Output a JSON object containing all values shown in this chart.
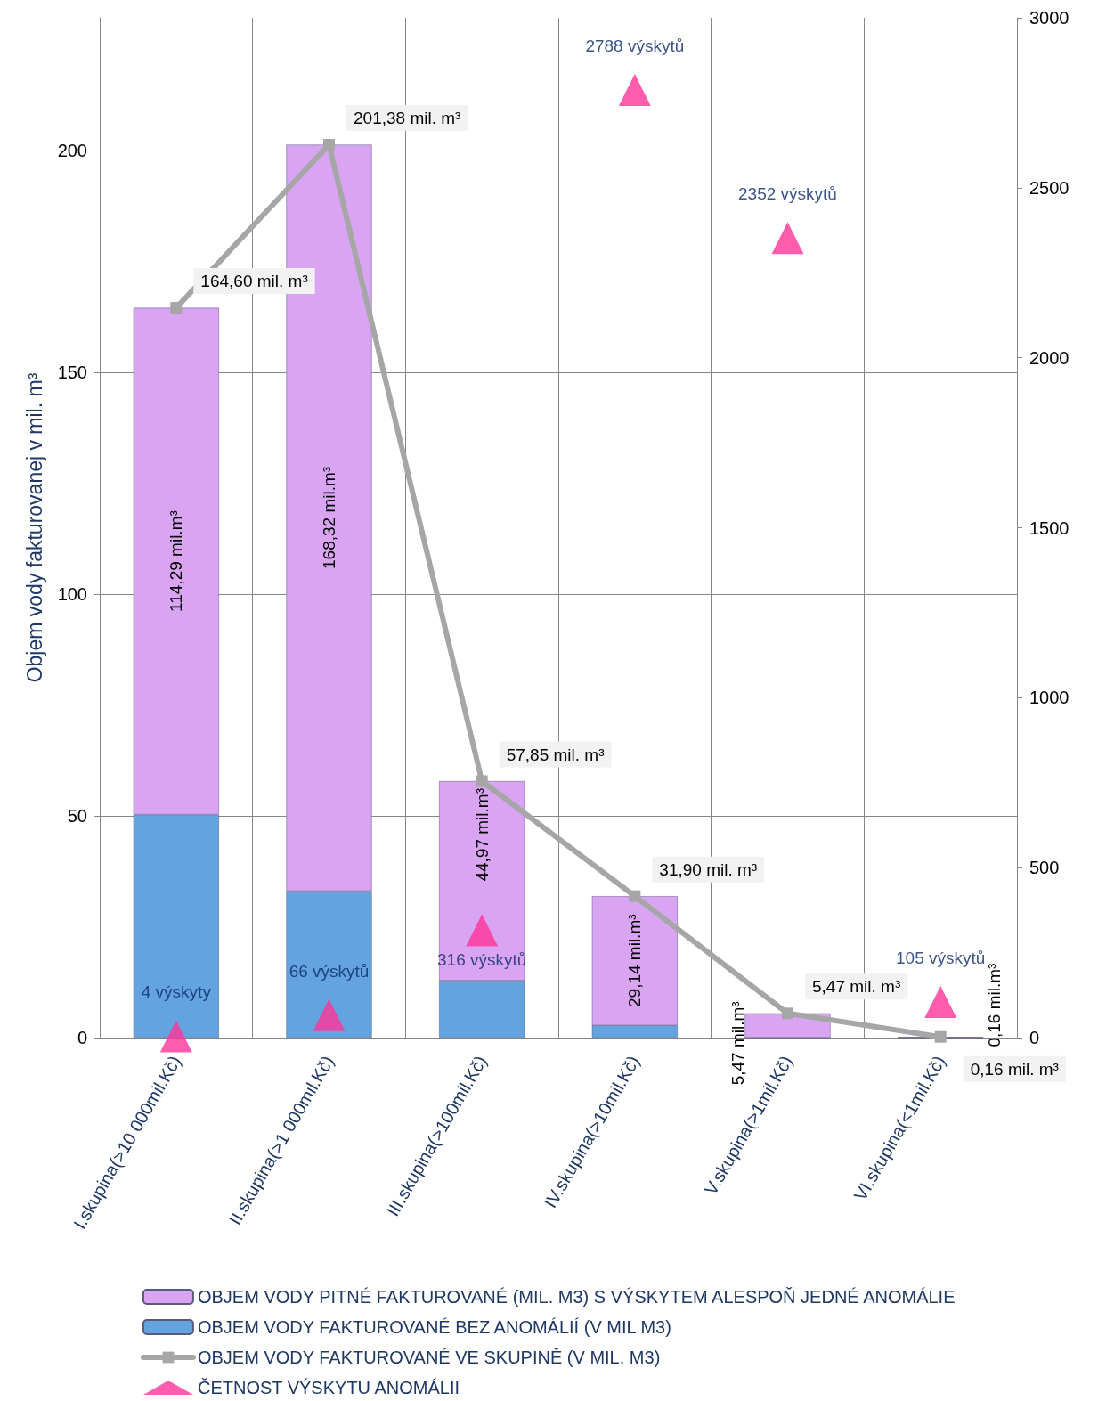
{
  "chart_data": {
    "type": "bar",
    "stacked": true,
    "ylabel": "Objem vody fakturovanej v mil. m³",
    "categories": [
      "I.skupina(>10 000mil.Kč)",
      "II.skupina(>1 000mil.Kč)",
      "III.skupina(>100mil.Kč)",
      "IV.skupina(>10mil.Kč)",
      "V.skupina(>1mil.Kč)",
      "VI.skupina(<1mil.Kč)"
    ],
    "series": [
      {
        "name": "OBJEM VODY FAKTUROVANÉ BEZ ANOMÁLIÍ (V MIL M3)",
        "color": "#63a3e0",
        "values": [
          50.31,
          33.06,
          12.88,
          2.76,
          0,
          0
        ]
      },
      {
        "name": "OBJEM VODY PITNÉ FAKTUROVANÉ (MIL. M3) S VÝSKYTEM ALESPOŇ JEDNÉ ANOMÁLIE",
        "color": "#d9a5f2",
        "values": [
          114.29,
          168.32,
          44.97,
          29.14,
          5.47,
          0.16
        ],
        "value_labels": [
          "114,29 mil.m³",
          "168,32 mil.m³",
          "44,97 mil.m³",
          "29,14 mil.m³",
          "5,47 mil.m³",
          "0,16 mil.m³"
        ]
      },
      {
        "name": "OBJEM VODY FAKTUROVANÉ VE SKUPINĚ (V MIL. M3)",
        "type": "line",
        "color": "#a6a6a6",
        "marker": "square",
        "values": [
          164.6,
          201.38,
          57.85,
          31.9,
          5.47,
          0.16
        ],
        "value_labels": [
          "164,60 mil. m³",
          "201,38 mil. m³",
          "57,85 mil. m³",
          "31,90 mil. m³",
          "5,47 mil. m³",
          "0,16 mil. m³"
        ]
      },
      {
        "name": "ČETNOST VÝSKYTU ANOMÁLII",
        "type": "scatter",
        "axis": "y2",
        "color": "#ff3399",
        "marker": "triangle",
        "values": [
          4,
          66,
          316,
          2788,
          2352,
          105
        ],
        "value_labels": [
          "4 výskyty",
          "66 výskytů",
          "316 výskytů",
          "2788 výskytů",
          "2352 výskytů",
          "105 výskytů"
        ]
      }
    ],
    "ylim": [
      0,
      230
    ],
    "yticks": [
      0,
      50,
      100,
      150,
      200
    ],
    "y2lim": [
      0,
      3000
    ],
    "y2ticks": [
      0,
      500,
      1000,
      1500,
      2000,
      2500,
      3000
    ],
    "grid": true,
    "legend": "bottom"
  }
}
